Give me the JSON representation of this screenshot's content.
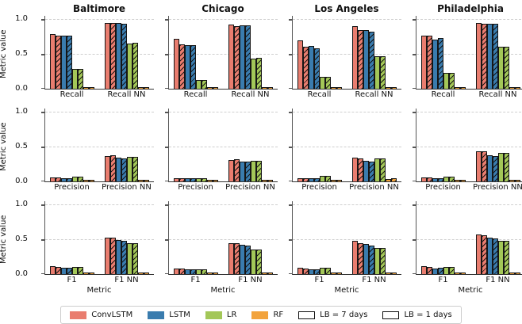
{
  "figure": {
    "ylabel": "Metric value",
    "xlabel": "Metric",
    "ytick_labels": [
      "1.0",
      "0.5",
      "0.0"
    ]
  },
  "legend": {
    "models": [
      {
        "label": "ConvLSTM",
        "color": "#E97D6F"
      },
      {
        "label": "LSTM",
        "color": "#3A7CAE"
      },
      {
        "label": "LR",
        "color": "#A3C758"
      },
      {
        "label": "RF",
        "color": "#F2A33C"
      }
    ],
    "lookbacks": [
      {
        "label": "LB = 7 days",
        "hatched": false
      },
      {
        "label": "LB = 1 days",
        "hatched": true
      }
    ]
  },
  "chart_data": {
    "type": "bar",
    "layout": "3 rows x 4 columns of subplots, shared y axis",
    "columns": [
      "Baltimore",
      "Chicago",
      "Los Angeles",
      "Philadelphia"
    ],
    "row_metrics": [
      [
        "Recall",
        "Recall NN"
      ],
      [
        "Precision",
        "Precision NN"
      ],
      [
        "F1",
        "F1 NN"
      ]
    ],
    "models": [
      "ConvLSTM",
      "LSTM",
      "LR",
      "RF"
    ],
    "lookbacks": [
      "LB = 7 days",
      "LB = 1 days"
    ],
    "bar_order_note": "per metric group: for each model, [LB=7 days (solid), LB=1 days (hatched)]",
    "ylabel": "Metric value",
    "xlabel": "Metric",
    "ylim": [
      0,
      1.05
    ],
    "yticks": [
      0.0,
      0.5,
      1.0
    ],
    "grid": "dashed horizontal gridlines at 0.5 and 1.0",
    "legend_position": "bottom center",
    "values": {
      "Baltimore": {
        "Recall": {
          "ConvLSTM": [
            0.79,
            0.76
          ],
          "LSTM": [
            0.76,
            0.76
          ],
          "LR": [
            0.28,
            0.29
          ],
          "RF": [
            0.0,
            0.0
          ]
        },
        "Recall NN": {
          "ConvLSTM": [
            0.95,
            0.95
          ],
          "LSTM": [
            0.95,
            0.94
          ],
          "LR": [
            0.65,
            0.66
          ],
          "RF": [
            0.01,
            0.01
          ]
        },
        "Precision": {
          "ConvLSTM": [
            0.06,
            0.06
          ],
          "LSTM": [
            0.05,
            0.05
          ],
          "LR": [
            0.07,
            0.07
          ],
          "RF": [
            0.0,
            0.0
          ]
        },
        "Precision NN": {
          "ConvLSTM": [
            0.36,
            0.38
          ],
          "LSTM": [
            0.34,
            0.33
          ],
          "LR": [
            0.35,
            0.35
          ],
          "RF": [
            0.01,
            0.01
          ]
        },
        "F1": {
          "ConvLSTM": [
            0.11,
            0.1
          ],
          "LSTM": [
            0.09,
            0.09
          ],
          "LR": [
            0.1,
            0.1
          ],
          "RF": [
            0.0,
            0.0
          ]
        },
        "F1 NN": {
          "ConvLSTM": [
            0.52,
            0.53
          ],
          "LSTM": [
            0.49,
            0.48
          ],
          "LR": [
            0.44,
            0.45
          ],
          "RF": [
            0.01,
            0.01
          ]
        }
      },
      "Chicago": {
        "Recall": {
          "ConvLSTM": [
            0.72,
            0.64
          ],
          "LSTM": [
            0.63,
            0.63
          ],
          "LR": [
            0.12,
            0.13
          ],
          "RF": [
            0.0,
            0.0
          ]
        },
        "Recall NN": {
          "ConvLSTM": [
            0.93,
            0.9
          ],
          "LSTM": [
            0.91,
            0.91
          ],
          "LR": [
            0.43,
            0.45
          ],
          "RF": [
            0.01,
            0.01
          ]
        },
        "Precision": {
          "ConvLSTM": [
            0.05,
            0.05
          ],
          "LSTM": [
            0.04,
            0.04
          ],
          "LR": [
            0.05,
            0.05
          ],
          "RF": [
            0.0,
            0.0
          ]
        },
        "Precision NN": {
          "ConvLSTM": [
            0.31,
            0.32
          ],
          "LSTM": [
            0.28,
            0.28
          ],
          "LR": [
            0.3,
            0.3
          ],
          "RF": [
            0.01,
            0.01
          ]
        },
        "F1": {
          "ConvLSTM": [
            0.08,
            0.08
          ],
          "LSTM": [
            0.07,
            0.07
          ],
          "LR": [
            0.07,
            0.07
          ],
          "RF": [
            0.0,
            0.0
          ]
        },
        "F1 NN": {
          "ConvLSTM": [
            0.44,
            0.44
          ],
          "LSTM": [
            0.42,
            0.41
          ],
          "LR": [
            0.35,
            0.35
          ],
          "RF": [
            0.01,
            0.01
          ]
        }
      },
      "Los Angeles": {
        "Recall": {
          "ConvLSTM": [
            0.7,
            0.6
          ],
          "LSTM": [
            0.62,
            0.58
          ],
          "LR": [
            0.17,
            0.17
          ],
          "RF": [
            0.01,
            0.01
          ]
        },
        "Recall NN": {
          "ConvLSTM": [
            0.9,
            0.84
          ],
          "LSTM": [
            0.85,
            0.82
          ],
          "LR": [
            0.47,
            0.47
          ],
          "RF": [
            0.01,
            0.01
          ]
        },
        "Precision": {
          "ConvLSTM": [
            0.05,
            0.05
          ],
          "LSTM": [
            0.04,
            0.04
          ],
          "LR": [
            0.08,
            0.08
          ],
          "RF": [
            0.01,
            0.01
          ]
        },
        "Precision NN": {
          "ConvLSTM": [
            0.34,
            0.33
          ],
          "LSTM": [
            0.3,
            0.28
          ],
          "LR": [
            0.33,
            0.33
          ],
          "RF": [
            0.03,
            0.04
          ]
        },
        "F1": {
          "ConvLSTM": [
            0.09,
            0.08
          ],
          "LSTM": [
            0.07,
            0.07
          ],
          "LR": [
            0.09,
            0.09
          ],
          "RF": [
            0.01,
            0.01
          ]
        },
        "F1 NN": {
          "ConvLSTM": [
            0.48,
            0.45
          ],
          "LSTM": [
            0.43,
            0.41
          ],
          "LR": [
            0.38,
            0.38
          ],
          "RF": [
            0.02,
            0.02
          ]
        }
      },
      "Philadelphia": {
        "Recall": {
          "ConvLSTM": [
            0.77,
            0.76
          ],
          "LSTM": [
            0.71,
            0.73
          ],
          "LR": [
            0.23,
            0.23
          ],
          "RF": [
            0.0,
            0.0
          ]
        },
        "Recall NN": {
          "ConvLSTM": [
            0.95,
            0.94
          ],
          "LSTM": [
            0.94,
            0.94
          ],
          "LR": [
            0.61,
            0.61
          ],
          "RF": [
            0.01,
            0.01
          ]
        },
        "Precision": {
          "ConvLSTM": [
            0.06,
            0.06
          ],
          "LSTM": [
            0.05,
            0.05
          ],
          "LR": [
            0.07,
            0.07
          ],
          "RF": [
            0.01,
            0.01
          ]
        },
        "Precision NN": {
          "ConvLSTM": [
            0.43,
            0.43
          ],
          "LSTM": [
            0.38,
            0.37
          ],
          "LR": [
            0.41,
            0.41
          ],
          "RF": [
            0.02,
            0.02
          ]
        },
        "F1": {
          "ConvLSTM": [
            0.11,
            0.1
          ],
          "LSTM": [
            0.08,
            0.09
          ],
          "LR": [
            0.1,
            0.1
          ],
          "RF": [
            0.0,
            0.0
          ]
        },
        "F1 NN": {
          "ConvLSTM": [
            0.57,
            0.56
          ],
          "LSTM": [
            0.52,
            0.51
          ],
          "LR": [
            0.48,
            0.48
          ],
          "RF": [
            0.01,
            0.01
          ]
        }
      }
    }
  }
}
